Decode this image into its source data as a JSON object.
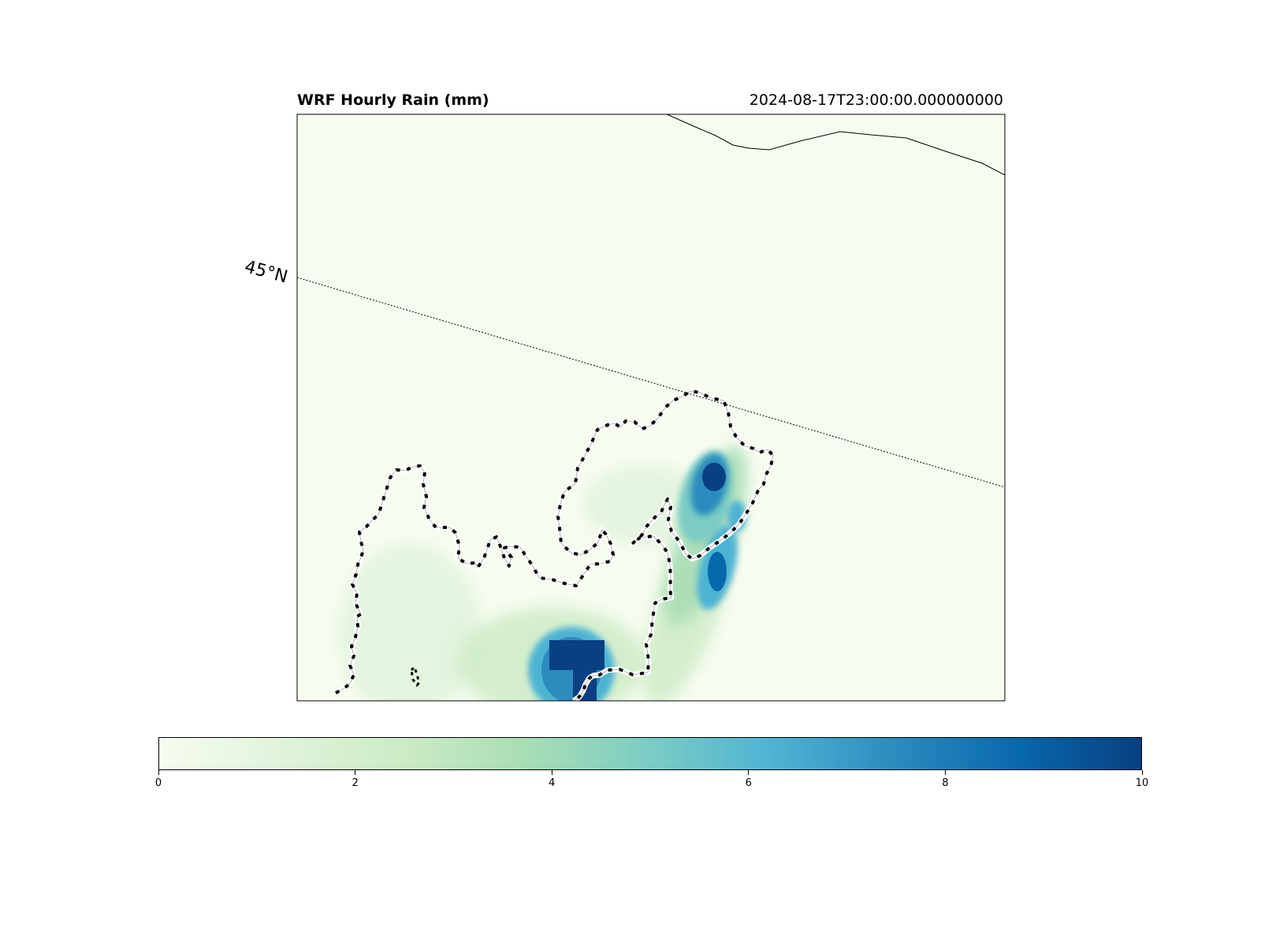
{
  "title": "WRF Hourly Rain (mm)",
  "timestamp": "2024-08-17T23:00:00.000000000",
  "latitude_label": "45°N",
  "colorbar": {
    "ticks": [
      "0",
      "2",
      "4",
      "6",
      "8",
      "10"
    ],
    "min": 0,
    "max": 10,
    "colormap": [
      "#f7fcf0",
      "#e0f3db",
      "#ccebc5",
      "#a8ddb5",
      "#7bccc4",
      "#4eb3d3",
      "#2b8cbe",
      "#0868ac",
      "#084081"
    ]
  },
  "colors": {
    "background": "#f7fcf0",
    "border_line": "#000000"
  }
}
